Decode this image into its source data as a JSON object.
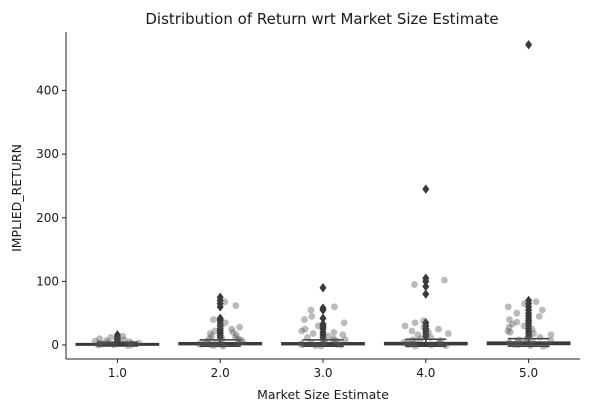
{
  "chart_data": {
    "type": "box",
    "title": "Distribution of Return wrt Market Size Estimate",
    "xlabel": "Market Size Estimate",
    "ylabel": "IMPLIED_RETURN",
    "categories": [
      "1.0",
      "2.0",
      "3.0",
      "4.0",
      "5.0"
    ],
    "ylim": [
      -22,
      492
    ],
    "yticks": [
      0,
      100,
      200,
      300,
      400
    ],
    "grid": false,
    "legend": "none",
    "box_color": "#3a3a3a",
    "point_color": "#555555",
    "boxes": [
      {
        "category": "1.0",
        "q1": 0.3,
        "median": 1.0,
        "q3": 2.2,
        "whisker_low": -1.5,
        "whisker_high": 4.5,
        "outliers": [
          6,
          8,
          10,
          13,
          16
        ],
        "points": [
          -1,
          0,
          0.5,
          1,
          1.5,
          2,
          2.5,
          3,
          4,
          5,
          6,
          7,
          8,
          9,
          10,
          12,
          14
        ]
      },
      {
        "category": "2.0",
        "q1": 0.6,
        "median": 1.6,
        "q3": 3.6,
        "whisker_low": -2,
        "whisker_high": 8,
        "outliers": [
          12,
          15,
          18,
          20,
          23,
          26,
          30,
          34,
          38,
          40,
          42,
          60,
          65,
          70,
          75
        ],
        "points": [
          -2,
          -1,
          0,
          0.5,
          1,
          1.5,
          2,
          3,
          4,
          5,
          6,
          7,
          8,
          9,
          10,
          11,
          12,
          14,
          16,
          18,
          20,
          22,
          25,
          28,
          30,
          35,
          40,
          62,
          68
        ]
      },
      {
        "category": "3.0",
        "q1": 0.5,
        "median": 1.5,
        "q3": 3.5,
        "whisker_low": -2,
        "whisker_high": 8,
        "outliers": [
          12,
          16,
          20,
          25,
          28,
          30,
          33,
          42,
          55,
          58,
          90
        ],
        "points": [
          -2,
          -1,
          0,
          0.5,
          1,
          2,
          3,
          4,
          5,
          6,
          7,
          8,
          9,
          10,
          12,
          14,
          16,
          18,
          20,
          22,
          25,
          30,
          35,
          40,
          45,
          55,
          60
        ]
      },
      {
        "category": "4.0",
        "q1": 0.5,
        "median": 1.6,
        "q3": 3.8,
        "whisker_low": -2,
        "whisker_high": 9,
        "outliers": [
          14,
          18,
          22,
          26,
          30,
          35,
          80,
          92,
          100,
          105,
          245
        ],
        "points": [
          -2,
          -1,
          0,
          0.5,
          1,
          2,
          3,
          4,
          5,
          6,
          7,
          8,
          10,
          12,
          14,
          16,
          18,
          20,
          22,
          25,
          28,
          30,
          35,
          38,
          95,
          102
        ]
      },
      {
        "category": "5.0",
        "q1": 0.8,
        "median": 2.0,
        "q3": 4.5,
        "whisker_low": -2,
        "whisker_high": 10,
        "outliers": [
          14,
          18,
          22,
          26,
          30,
          34,
          38,
          42,
          46,
          50,
          55,
          60,
          65,
          70,
          472
        ],
        "points": [
          -2,
          -1,
          0,
          0.5,
          1,
          2,
          3,
          4,
          5,
          6,
          7,
          8,
          9,
          10,
          12,
          14,
          16,
          18,
          20,
          22,
          25,
          28,
          30,
          33,
          36,
          40,
          45,
          50,
          55,
          60,
          65,
          68
        ]
      }
    ]
  }
}
